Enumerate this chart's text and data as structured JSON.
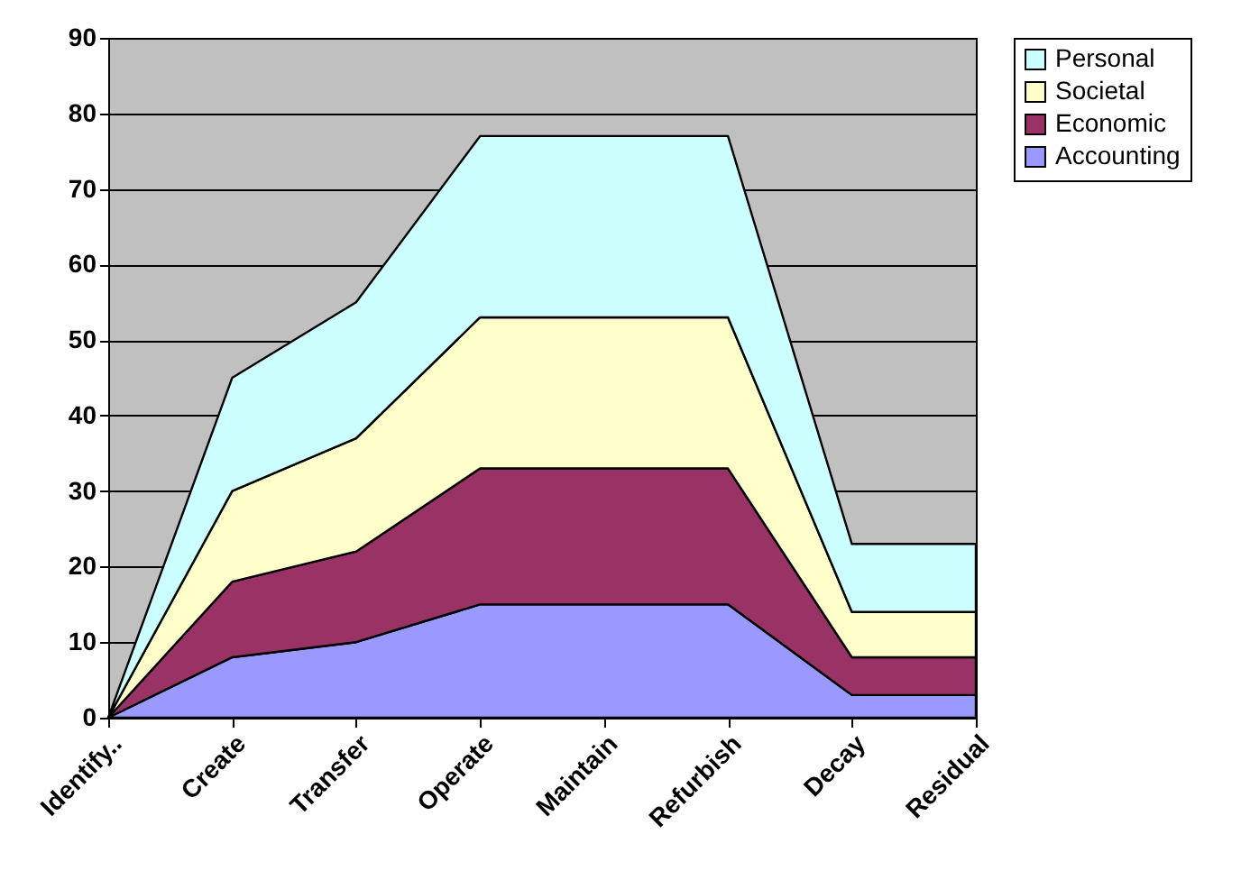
{
  "chart_data": {
    "type": "area",
    "stacked": true,
    "categories": [
      "Identify..",
      "Create",
      "Transfer",
      "Operate",
      "Maintain",
      "Refurbish",
      "Decay",
      "Residual"
    ],
    "series": [
      {
        "name": "Accounting",
        "color": "#9999ff",
        "values": [
          0,
          8,
          10,
          15,
          15,
          15,
          3,
          3
        ]
      },
      {
        "name": "Economic",
        "color": "#993366",
        "values": [
          0,
          10,
          12,
          18,
          18,
          18,
          5,
          5
        ]
      },
      {
        "name": "Societal",
        "color": "#ffffcc",
        "values": [
          0,
          12,
          15,
          20,
          20,
          20,
          6,
          6
        ]
      },
      {
        "name": "Personal",
        "color": "#ccffff",
        "values": [
          0,
          15,
          18,
          24,
          24,
          24,
          9,
          9
        ]
      }
    ],
    "ylim": [
      0,
      90
    ],
    "yticks": [
      0,
      10,
      20,
      30,
      40,
      50,
      60,
      70,
      80,
      90
    ],
    "grid": "y",
    "legend": "right"
  }
}
